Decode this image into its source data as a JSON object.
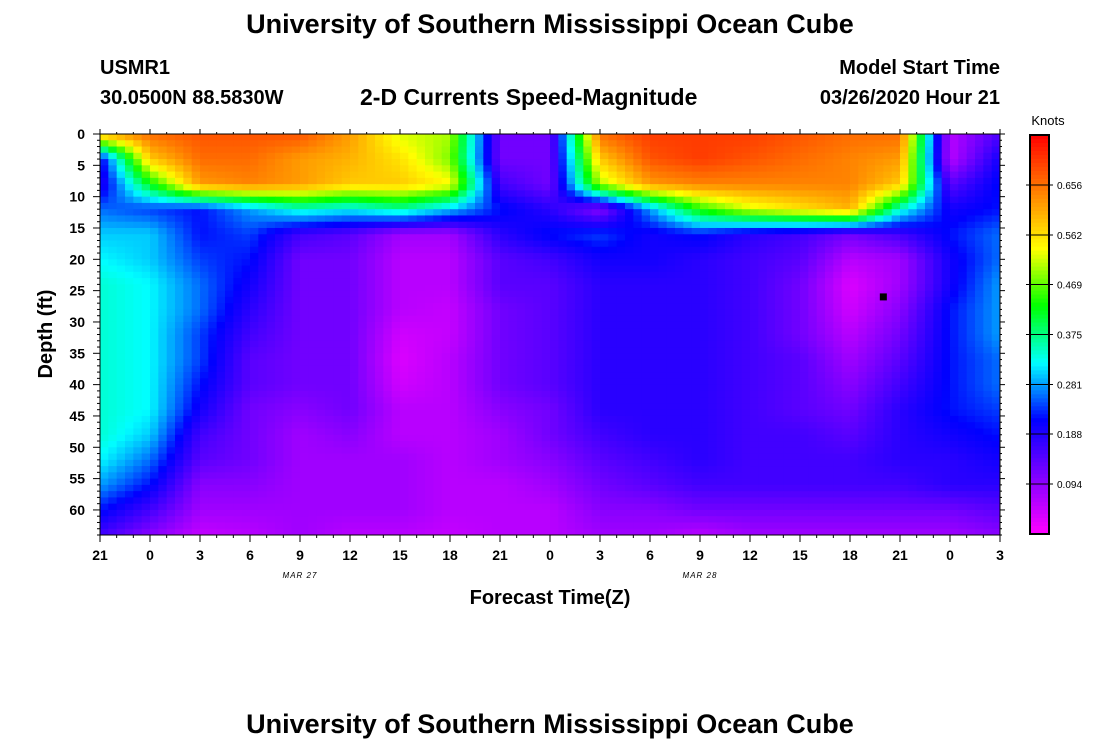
{
  "page": {
    "title": "University of Southern Mississippi Ocean Cube",
    "footer_title": "University of Southern Mississippi Ocean Cube",
    "station_id": "USMR1",
    "station_coords": "30.0500N 88.5830W",
    "plot_subtitle": "2-D Currents Speed-Magnitude",
    "model_start_label": "Model Start Time",
    "model_start_value": "03/26/2020 Hour 21"
  },
  "chart_data": {
    "type": "heatmap",
    "title": "2-D Currents Speed-Magnitude",
    "xlabel": "Forecast Time(Z)",
    "ylabel": "Depth (ft)",
    "colorbar_label": "Knots",
    "colorbar_ticks": [
      "0.656",
      "0.562",
      "0.469",
      "0.375",
      "0.281",
      "0.188",
      "0.094"
    ],
    "colorbar_values": [
      0.656,
      0.562,
      0.469,
      0.375,
      0.281,
      0.188,
      0.094
    ],
    "colorbar_range": [
      0.0,
      0.75
    ],
    "colormap": [
      "#ff00ff",
      "#8000ff",
      "#0000ff",
      "#00ffff",
      "#00ff00",
      "#ffff00",
      "#ff8000",
      "#ff0000"
    ],
    "x_tick_labels": [
      "21",
      "0",
      "3",
      "6",
      "9",
      "12",
      "15",
      "18",
      "21",
      "0",
      "3",
      "6",
      "9",
      "12",
      "15",
      "18",
      "21",
      "0",
      "3"
    ],
    "x_date_labels": [
      {
        "label": "MAR 27",
        "hour_index": 12
      },
      {
        "label": "MAR 28",
        "hour_index": 36
      }
    ],
    "x_range_hours": [
      0,
      54
    ],
    "y_tick_labels": [
      "0",
      "5",
      "10",
      "15",
      "20",
      "25",
      "30",
      "35",
      "40",
      "45",
      "50",
      "55",
      "60"
    ],
    "y_range_ft": [
      0,
      64
    ],
    "y_reversed": true,
    "depths_ft": [
      0,
      4,
      8,
      12,
      16,
      20,
      24,
      28,
      32,
      36,
      40,
      44,
      48,
      52,
      56,
      60,
      64
    ],
    "hours": [
      0,
      3,
      6,
      9,
      12,
      15,
      18,
      21,
      24,
      27,
      30,
      33,
      36,
      39,
      42,
      45,
      48,
      51,
      54
    ],
    "speed_knots": [
      [
        0.6,
        0.66,
        0.68,
        0.68,
        0.68,
        0.62,
        0.52,
        0.5,
        0.12,
        0.12,
        0.66,
        0.7,
        0.7,
        0.7,
        0.68,
        0.66,
        0.66,
        0.06,
        0.15
      ],
      [
        0.2,
        0.58,
        0.66,
        0.66,
        0.62,
        0.6,
        0.56,
        0.48,
        0.12,
        0.12,
        0.58,
        0.68,
        0.7,
        0.68,
        0.66,
        0.64,
        0.62,
        0.06,
        0.2
      ],
      [
        0.18,
        0.42,
        0.62,
        0.64,
        0.62,
        0.58,
        0.58,
        0.54,
        0.16,
        0.12,
        0.5,
        0.62,
        0.64,
        0.64,
        0.64,
        0.64,
        0.58,
        0.14,
        0.22
      ],
      [
        0.26,
        0.24,
        0.22,
        0.28,
        0.34,
        0.32,
        0.36,
        0.3,
        0.22,
        0.18,
        0.1,
        0.28,
        0.44,
        0.52,
        0.56,
        0.6,
        0.34,
        0.2,
        0.22
      ],
      [
        0.3,
        0.3,
        0.22,
        0.24,
        0.16,
        0.14,
        0.08,
        0.08,
        0.18,
        0.22,
        0.24,
        0.2,
        0.22,
        0.18,
        0.16,
        0.12,
        0.16,
        0.22,
        0.26
      ],
      [
        0.32,
        0.3,
        0.24,
        0.22,
        0.12,
        0.12,
        0.06,
        0.06,
        0.14,
        0.16,
        0.2,
        0.2,
        0.18,
        0.16,
        0.14,
        0.06,
        0.08,
        0.2,
        0.26
      ],
      [
        0.34,
        0.32,
        0.26,
        0.2,
        0.12,
        0.12,
        0.06,
        0.06,
        0.14,
        0.14,
        0.18,
        0.18,
        0.18,
        0.16,
        0.12,
        0.03,
        0.08,
        0.2,
        0.28
      ],
      [
        0.34,
        0.32,
        0.26,
        0.18,
        0.12,
        0.12,
        0.06,
        0.05,
        0.12,
        0.14,
        0.18,
        0.18,
        0.18,
        0.16,
        0.12,
        0.04,
        0.1,
        0.22,
        0.28
      ],
      [
        0.34,
        0.32,
        0.24,
        0.16,
        0.12,
        0.12,
        0.04,
        0.05,
        0.12,
        0.14,
        0.18,
        0.18,
        0.18,
        0.16,
        0.12,
        0.06,
        0.12,
        0.22,
        0.28
      ],
      [
        0.34,
        0.32,
        0.24,
        0.14,
        0.12,
        0.12,
        0.03,
        0.06,
        0.12,
        0.14,
        0.18,
        0.18,
        0.18,
        0.16,
        0.14,
        0.08,
        0.14,
        0.22,
        0.26
      ],
      [
        0.34,
        0.32,
        0.22,
        0.14,
        0.12,
        0.12,
        0.04,
        0.06,
        0.12,
        0.14,
        0.18,
        0.18,
        0.18,
        0.16,
        0.14,
        0.1,
        0.16,
        0.22,
        0.26
      ],
      [
        0.34,
        0.32,
        0.2,
        0.12,
        0.1,
        0.12,
        0.06,
        0.06,
        0.1,
        0.12,
        0.18,
        0.18,
        0.18,
        0.16,
        0.14,
        0.12,
        0.18,
        0.22,
        0.24
      ],
      [
        0.34,
        0.3,
        0.16,
        0.12,
        0.08,
        0.1,
        0.06,
        0.06,
        0.08,
        0.12,
        0.16,
        0.18,
        0.18,
        0.16,
        0.16,
        0.14,
        0.18,
        0.2,
        0.22
      ],
      [
        0.32,
        0.26,
        0.14,
        0.12,
        0.08,
        0.08,
        0.08,
        0.06,
        0.08,
        0.1,
        0.14,
        0.16,
        0.18,
        0.16,
        0.16,
        0.16,
        0.18,
        0.18,
        0.2
      ],
      [
        0.28,
        0.22,
        0.1,
        0.1,
        0.08,
        0.08,
        0.08,
        0.06,
        0.06,
        0.08,
        0.12,
        0.14,
        0.16,
        0.16,
        0.16,
        0.16,
        0.16,
        0.18,
        0.18
      ],
      [
        0.22,
        0.16,
        0.08,
        0.08,
        0.08,
        0.08,
        0.08,
        0.06,
        0.06,
        0.06,
        0.1,
        0.1,
        0.12,
        0.12,
        0.12,
        0.12,
        0.12,
        0.12,
        0.14
      ],
      [
        0.16,
        0.1,
        0.05,
        0.06,
        0.08,
        0.06,
        0.06,
        0.05,
        0.06,
        0.06,
        0.08,
        0.08,
        0.06,
        0.08,
        0.08,
        0.08,
        0.08,
        0.08,
        0.1
      ]
    ],
    "marker": {
      "hour": 47,
      "depth_ft": 26
    }
  }
}
